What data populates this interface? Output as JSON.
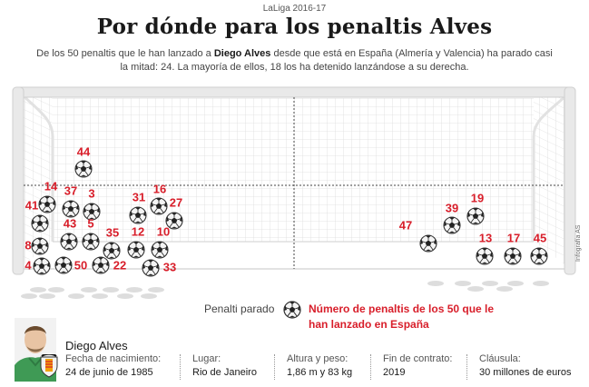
{
  "header": {
    "kicker": "LaLiga 2016-17",
    "title": "Por dónde para los penaltis Alves",
    "subtitle_pre": "De los 50 penaltis que le han lanzado a ",
    "subtitle_name": "Diego Alves",
    "subtitle_post": " desde que está en España (Almería y Valencia) ha parado casi la mitad: 24. La mayoría de ellos, 18 los ha detenido lanzándose a su derecha."
  },
  "saves": [
    {
      "label": "44"
    },
    {
      "label": "14"
    },
    {
      "label": "37"
    },
    {
      "label": "3"
    },
    {
      "label": "41"
    },
    {
      "label": "43"
    },
    {
      "label": "5"
    },
    {
      "label": "8"
    },
    {
      "label": "35"
    },
    {
      "label": "4"
    },
    {
      "label": "50"
    },
    {
      "label": "22"
    },
    {
      "label": "31"
    },
    {
      "label": "16"
    },
    {
      "label": "27"
    },
    {
      "label": "12"
    },
    {
      "label": "10"
    },
    {
      "label": "33"
    },
    {
      "label": "47"
    },
    {
      "label": "39"
    },
    {
      "label": "19"
    },
    {
      "label": "13"
    },
    {
      "label": "17"
    },
    {
      "label": "45"
    }
  ],
  "legend": {
    "saved_label": "Penalti parado",
    "number_label": "Número de penaltis de los 50 que le han lanzado en España"
  },
  "credit": "Infografía AS",
  "player": {
    "name": "Diego Alves",
    "facts": [
      {
        "label": "Fecha de nacimiento:",
        "value": "24 de junio de 1985"
      },
      {
        "label": "Lugar:",
        "value": "Rio de Janeiro"
      },
      {
        "label": "Altura y peso:",
        "value": "1,86 m y 83 kg"
      },
      {
        "label": "Fin de contrato:",
        "value": "2019"
      },
      {
        "label": "Cláusula:",
        "value": "30 millones de euros"
      }
    ]
  },
  "colors": {
    "number": "#d81e2a",
    "post": "#e6e6e6",
    "net": "#dddddd"
  }
}
